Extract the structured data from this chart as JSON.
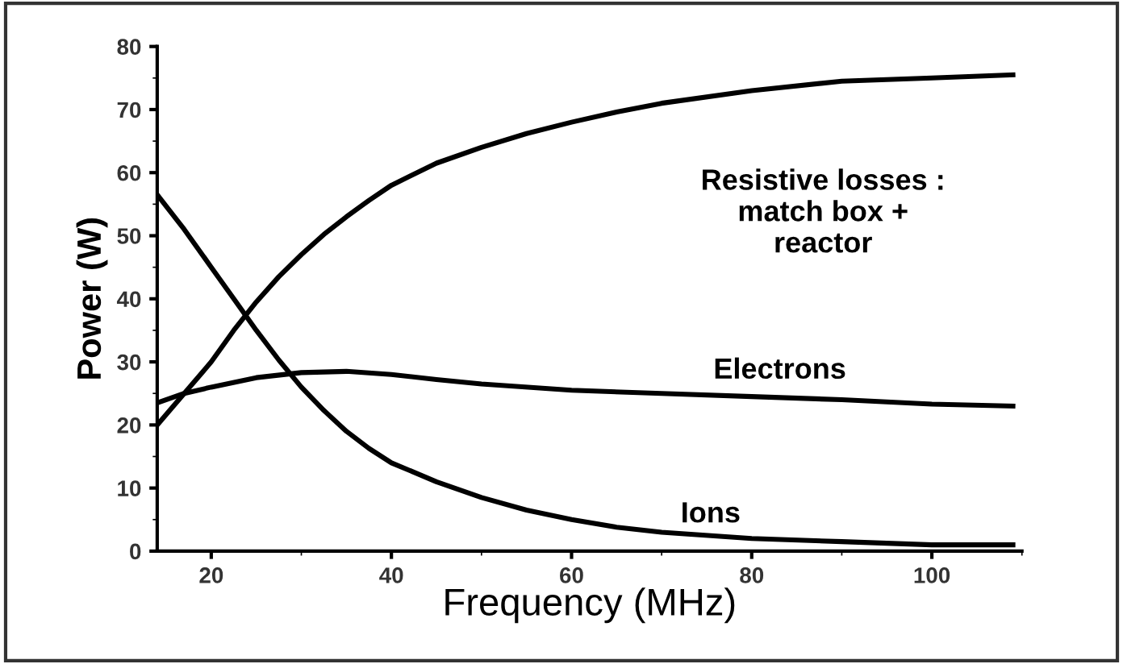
{
  "chart_data": {
    "type": "line",
    "xlabel": "Frequency (MHz)",
    "ylabel": "Power (W)",
    "xlim": [
      14,
      110
    ],
    "ylim": [
      0,
      80
    ],
    "xticks": [
      20,
      40,
      60,
      80,
      100
    ],
    "yticks": [
      0,
      10,
      20,
      30,
      40,
      50,
      60,
      70,
      80
    ],
    "grid": false,
    "legend": false,
    "marker": "none",
    "line_style": "solid",
    "series": [
      {
        "name": "Resistive losses :\nmatch box +\nreactor",
        "color": "#000000",
        "x": [
          14,
          17,
          20,
          22.5,
          25,
          27.5,
          30,
          32.5,
          35,
          37.5,
          40,
          45,
          50,
          55,
          60,
          65,
          70,
          80,
          90,
          100,
          109
        ],
        "values": [
          20,
          25,
          30,
          35,
          39.5,
          43.5,
          47,
          50.2,
          53,
          55.6,
          58,
          61.5,
          64,
          66.2,
          68,
          69.6,
          71,
          73,
          74.5,
          75,
          75.5
        ]
      },
      {
        "name": "Electrons",
        "color": "#000000",
        "x": [
          14,
          17,
          20,
          25,
          30,
          35,
          40,
          45,
          50,
          60,
          70,
          80,
          90,
          100,
          109
        ],
        "values": [
          23.5,
          25,
          26,
          27.5,
          28.3,
          28.5,
          28,
          27.2,
          26.5,
          25.5,
          25,
          24.5,
          24,
          23.3,
          23
        ]
      },
      {
        "name": "Ions",
        "color": "#000000",
        "x": [
          14,
          17,
          20,
          22.5,
          25,
          27.5,
          30,
          32.5,
          35,
          37.5,
          40,
          45,
          50,
          55,
          60,
          65,
          70,
          80,
          90,
          100,
          109
        ],
        "values": [
          56.5,
          51,
          45,
          40,
          35,
          30.3,
          26,
          22.3,
          19,
          16.3,
          14,
          11,
          8.5,
          6.5,
          5,
          3.8,
          3,
          2,
          1.5,
          1,
          1
        ]
      }
    ]
  }
}
